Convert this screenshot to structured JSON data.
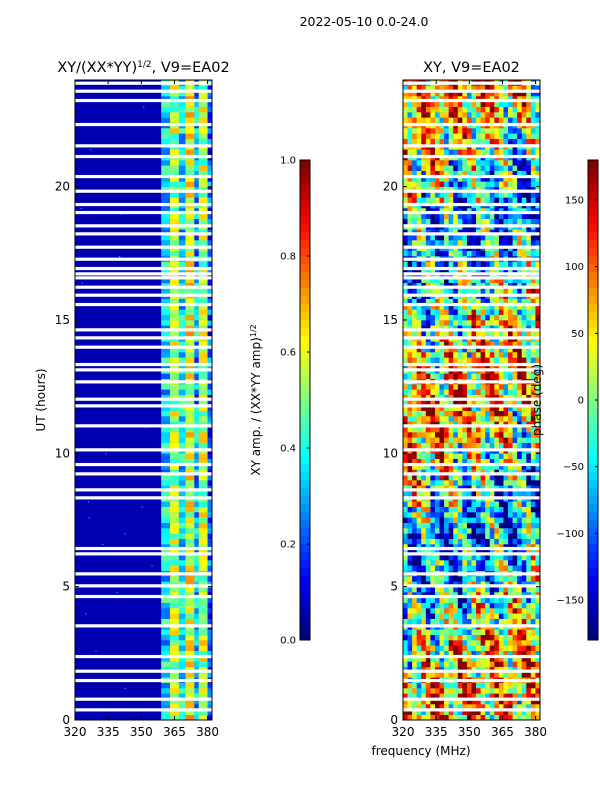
{
  "figure": {
    "suptitle": "2022-05-10 0.0-24.0",
    "xlabel_shared": "frequency (MHz)"
  },
  "colors": {
    "jet": [
      "#00007f",
      "#0000ff",
      "#007fff",
      "#00ffff",
      "#7fff7f",
      "#ffff00",
      "#ff7f00",
      "#ff0000",
      "#7f0000"
    ],
    "gap": "#ffffff"
  },
  "chart_data": [
    {
      "type": "heatmap",
      "id": "amp",
      "title_prefix": "XY/(XX*YY)",
      "title_sup": "1/2",
      "title_suffix": ", V9=EA02",
      "xlabel": "",
      "ylabel": "UT (hours)",
      "xlim": [
        320,
        382
      ],
      "ylim": [
        0,
        24
      ],
      "xticks": [
        320,
        335,
        350,
        365,
        380
      ],
      "yticks": [
        0,
        5,
        10,
        15,
        20
      ],
      "colorbar": {
        "label_prefix": "XY amp. / (XX*YY amp)",
        "label_sup": "1/2",
        "range": [
          0,
          1
        ],
        "ticks": [
          "0.0",
          "0.2",
          "0.4",
          "0.6",
          "0.8",
          "1.0"
        ],
        "tick_values": [
          0,
          0.2,
          0.4,
          0.6,
          0.8,
          1.0
        ]
      },
      "bands": [
        {
          "x0": 320,
          "x1": 359,
          "value": 0.05
        },
        {
          "x0": 359,
          "x1": 363,
          "value": 0.35
        },
        {
          "x0": 363,
          "x1": 367,
          "value": 0.55
        },
        {
          "x0": 367,
          "x1": 370,
          "value": 0.35
        },
        {
          "x0": 370,
          "x1": 374,
          "value": 0.6
        },
        {
          "x0": 374,
          "x1": 376,
          "value": 0.3
        },
        {
          "x0": 376,
          "x1": 380,
          "value": 0.55
        },
        {
          "x0": 380,
          "x1": 382,
          "value": 0.2
        }
      ]
    },
    {
      "type": "heatmap",
      "id": "phase",
      "title_prefix": "XY, V9=EA02",
      "title_sup": "",
      "title_suffix": "",
      "xlabel": "",
      "ylabel": "",
      "xlim": [
        320,
        382
      ],
      "ylim": [
        0,
        24
      ],
      "xticks": [
        320,
        335,
        350,
        365,
        380
      ],
      "yticks": [
        0,
        5,
        10,
        15,
        20
      ],
      "colorbar": {
        "label_prefix": "phase (deg)",
        "label_sup": "",
        "range": [
          -180,
          180
        ],
        "ticks": [
          "−150",
          "−100",
          "−50",
          "0",
          "50",
          "100",
          "150"
        ],
        "tick_values": [
          -150,
          -100,
          -50,
          0,
          50,
          100,
          150
        ]
      }
    }
  ],
  "gaps_ut_hours": [
    0.35,
    0.75,
    1.45,
    1.8,
    2.35,
    3.5,
    4.6,
    5.0,
    5.45,
    6.2,
    6.4,
    8.3,
    8.6,
    9.2,
    9.55,
    10.1,
    11.0,
    11.75,
    12.0,
    12.65,
    13.1,
    13.3,
    13.95,
    14.3,
    14.6,
    15.55,
    15.9,
    16.2,
    16.55,
    16.7,
    16.9,
    17.25,
    17.7,
    18.2,
    18.5,
    19.0,
    19.3,
    19.8,
    20.35,
    21.1,
    21.5,
    22.3,
    23.2,
    23.55,
    23.85
  ]
}
